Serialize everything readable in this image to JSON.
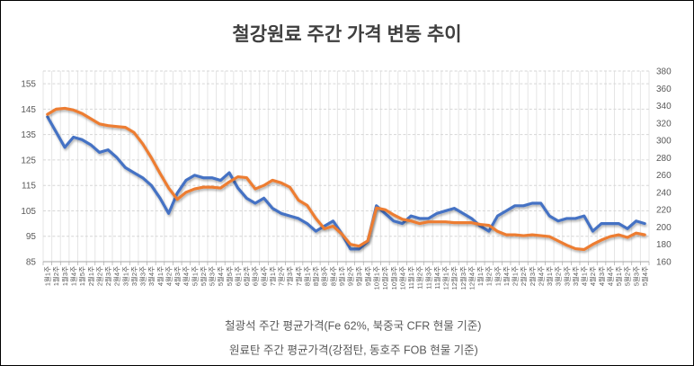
{
  "chart_data": {
    "type": "line",
    "title": "철강원료 주간 가격 변동 추이",
    "legend_position": "bottom",
    "grid": true,
    "left_axis": {
      "min": 85,
      "max": 160,
      "ticks": [
        85,
        95,
        105,
        115,
        125,
        135,
        145,
        155
      ]
    },
    "right_axis": {
      "min": 160,
      "max": 380,
      "ticks": [
        160,
        180,
        200,
        220,
        240,
        260,
        280,
        300,
        320,
        340,
        360,
        380
      ]
    },
    "categories": [
      "1월1주",
      "1월2주",
      "1월3주",
      "1월4주",
      "1월5주",
      "2월1주",
      "2월2주",
      "2월3주",
      "2월4주",
      "3월1주",
      "3월2주",
      "3월3주",
      "3월4주",
      "4월1주",
      "4월2주",
      "4월3주",
      "4월4주",
      "5월1주",
      "5월2주",
      "5월3주",
      "5월4주",
      "5월5주",
      "6월1주",
      "6월2주",
      "6월3주",
      "6월4주",
      "7월1주",
      "7월2주",
      "7월3주",
      "7월4주",
      "8월1주",
      "8월2주",
      "8월3주",
      "8월4주",
      "9월1주",
      "9월2주",
      "9월3주",
      "9월4주",
      "10월1주",
      "10월2주",
      "10월3주",
      "10월4주",
      "11월1주",
      "11월2주",
      "11월3주",
      "11월4주",
      "12월1주",
      "12월2주",
      "12월3주",
      "12월4주",
      "1월1주",
      "1월2주",
      "1월3주",
      "1월4주",
      "2월1주",
      "2월2주",
      "2월3주",
      "2월4주",
      "3월1주",
      "3월2주",
      "3월3주",
      "3월4주",
      "4월1주",
      "4월2주",
      "4월3주",
      "4월4주",
      "5월1주",
      "5월2주",
      "5월3주",
      "5월4주"
    ],
    "series": [
      {
        "name": "철광석 주간 평균가격(Fe 62%, 북중국 CFR 현물 기준)",
        "axis": "left",
        "color": "#4472C4",
        "values": [
          142,
          136,
          130,
          134,
          133,
          131,
          128,
          129,
          126,
          122,
          120,
          118,
          115,
          110,
          104,
          112,
          117,
          119,
          118,
          118,
          117,
          120,
          114,
          110,
          108,
          110,
          106,
          104,
          103,
          102,
          100,
          97,
          99,
          101,
          96,
          90,
          90,
          93,
          107,
          104,
          101,
          100,
          103,
          102,
          102,
          104,
          105,
          106,
          104,
          102,
          99,
          97,
          103,
          105,
          107,
          107,
          108,
          108,
          103,
          101,
          102,
          102,
          103,
          97,
          100,
          100,
          100,
          98,
          101,
          100
        ]
      },
      {
        "name": "원료탄 주간 평균가격(강점탄, 동호주 FOB 현물 기준)",
        "axis": "right",
        "color": "#ED7D31",
        "values": [
          330,
          336,
          337,
          335,
          331,
          325,
          319,
          317,
          316,
          315,
          309,
          296,
          280,
          262,
          245,
          232,
          240,
          244,
          246,
          246,
          245,
          252,
          258,
          257,
          244,
          248,
          254,
          251,
          246,
          231,
          225,
          210,
          198,
          201,
          192,
          180,
          178,
          184,
          222,
          220,
          214,
          209,
          207,
          204,
          206,
          206,
          206,
          205,
          205,
          205,
          203,
          202,
          195,
          191,
          191,
          190,
          191,
          190,
          189,
          184,
          179,
          175,
          174,
          180,
          185,
          189,
          191,
          188,
          193,
          191
        ]
      }
    ]
  },
  "style": {
    "grid_color": "#E5E5E5",
    "grid_dash_color": "#D6D6D6",
    "axis_line_color": "#A6A6A6",
    "title_color": "#3F3F3F",
    "label_color": "#595959"
  }
}
